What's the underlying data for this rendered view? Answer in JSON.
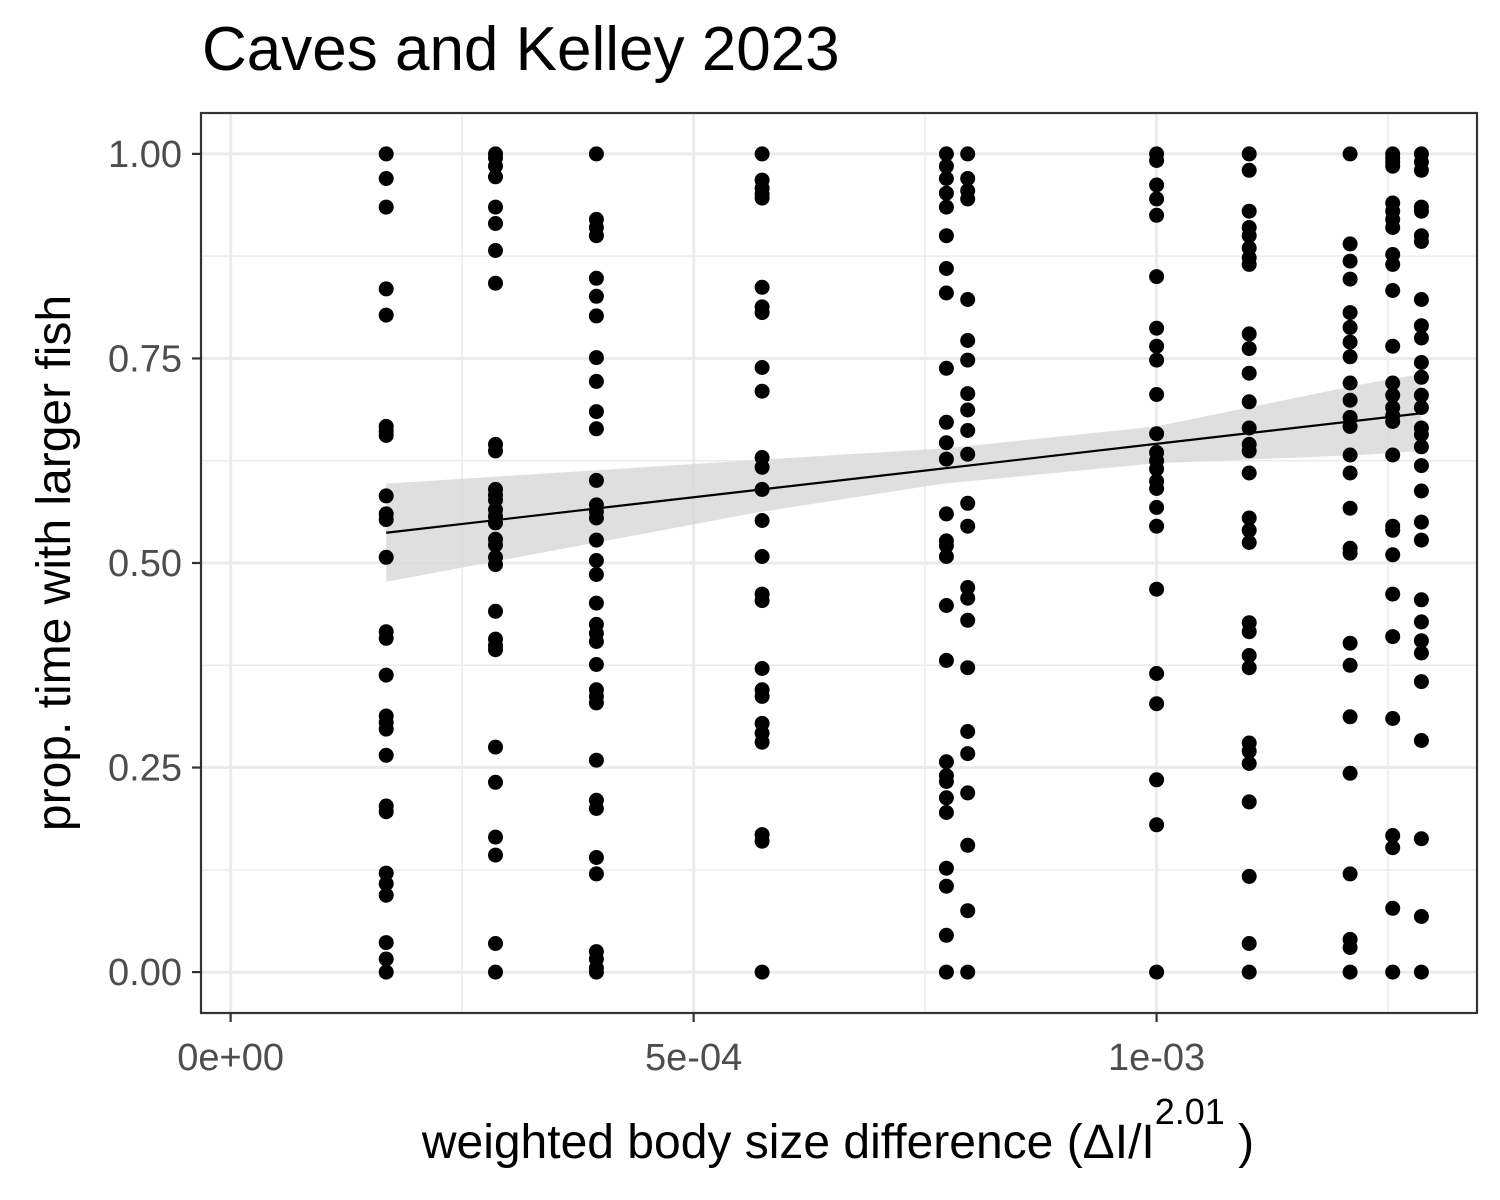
{
  "chart_data": {
    "type": "scatter",
    "title": "Caves and Kelley 2023",
    "xlabel_main": "weighted  body size  difference (ΔI/I",
    "xlabel_sup": "2.01",
    "xlabel_end": " )",
    "ylabel": "prop. time with larger fish",
    "xlim": [
      -3.2e-05,
      0.001346
    ],
    "ylim": [
      -0.05,
      1.05
    ],
    "x_ticks": [
      0,
      0.0005,
      0.001
    ],
    "x_tick_labels": [
      "0e+00",
      "5e-04",
      "1e-03"
    ],
    "y_ticks": [
      0,
      0.25,
      0.5,
      0.75,
      1
    ],
    "y_tick_labels": [
      "0.00",
      "0.25",
      "0.50",
      "0.75",
      "1.00"
    ],
    "grid": true,
    "colors": {
      "points": "#000000",
      "fit_line": "#000000",
      "confidence_band": "#d9d9d9",
      "grid": "#ebebeb",
      "panel_border": "#333333",
      "tick_text": "#4d4d4d"
    },
    "fit_line": {
      "x": [
        0.000168,
        0.001286
      ],
      "y": [
        0.537,
        0.683
      ]
    },
    "confidence_band": {
      "x": [
        0.000168,
        0.00057,
        0.00077,
        0.001,
        0.00122,
        0.001286
      ],
      "lower": [
        0.477,
        0.562,
        0.597,
        0.622,
        0.632,
        0.637
      ],
      "upper": [
        0.597,
        0.626,
        0.64,
        0.667,
        0.718,
        0.731
      ]
    },
    "series": [
      {
        "x": 0.000168,
        "y": [
          1.0,
          0.97,
          0.935,
          0.835,
          0.803,
          0.667,
          0.661,
          0.656,
          0.582,
          0.56,
          0.553,
          0.507,
          0.416,
          0.408,
          0.363,
          0.313,
          0.305,
          0.297,
          0.265,
          0.203,
          0.196,
          0.121,
          0.108,
          0.094,
          0.036,
          0.016,
          0.0
        ]
      },
      {
        "x": 0.000286,
        "y": [
          1.0,
          0.995,
          0.985,
          0.972,
          0.935,
          0.915,
          0.882,
          0.842,
          0.645,
          0.637,
          0.59,
          0.583,
          0.577,
          0.565,
          0.557,
          0.549,
          0.529,
          0.522,
          0.507,
          0.498,
          0.441,
          0.407,
          0.399,
          0.394,
          0.275,
          0.232,
          0.165,
          0.143,
          0.035,
          0.0
        ]
      },
      {
        "x": 0.000395,
        "y": [
          1.0,
          0.92,
          0.91,
          0.9,
          0.848,
          0.826,
          0.802,
          0.751,
          0.722,
          0.685,
          0.664,
          0.601,
          0.571,
          0.563,
          0.555,
          0.528,
          0.503,
          0.486,
          0.451,
          0.425,
          0.414,
          0.404,
          0.376,
          0.345,
          0.337,
          0.329,
          0.259,
          0.21,
          0.2,
          0.14,
          0.12,
          0.025,
          0.016,
          0.005,
          0.0
        ]
      },
      {
        "x": 0.000574,
        "y": [
          1.0,
          0.968,
          0.958,
          0.951,
          0.946,
          0.837,
          0.813,
          0.806,
          0.739,
          0.71,
          0.629,
          0.617,
          0.59,
          0.552,
          0.508,
          0.462,
          0.454,
          0.371,
          0.345,
          0.337,
          0.304,
          0.292,
          0.281,
          0.168,
          0.16,
          0.0
        ]
      },
      {
        "x": 0.000773,
        "y": [
          1.0,
          0.985,
          0.97,
          0.952,
          0.935,
          0.9,
          0.86,
          0.83,
          0.738,
          0.672,
          0.647,
          0.627,
          0.56,
          0.527,
          0.521,
          0.508,
          0.448,
          0.381,
          0.257,
          0.24,
          0.233,
          0.213,
          0.195,
          0.127,
          0.105,
          0.045,
          0.0
        ]
      },
      {
        "x": 0.000796,
        "y": [
          1.0,
          0.97,
          0.955,
          0.945,
          0.822,
          0.772,
          0.748,
          0.707,
          0.687,
          0.662,
          0.633,
          0.573,
          0.545,
          0.47,
          0.457,
          0.43,
          0.372,
          0.294,
          0.267,
          0.219,
          0.155,
          0.075,
          0.0
        ]
      },
      {
        "x": 0.001,
        "y": [
          1.0,
          0.992,
          0.962,
          0.945,
          0.925,
          0.85,
          0.787,
          0.765,
          0.748,
          0.706,
          0.658,
          0.635,
          0.625,
          0.615,
          0.6,
          0.591,
          0.568,
          0.545,
          0.468,
          0.365,
          0.328,
          0.235,
          0.18,
          0.0
        ]
      },
      {
        "x": 0.0011,
        "y": [
          1.0,
          0.98,
          0.93,
          0.91,
          0.9,
          0.885,
          0.873,
          0.865,
          0.78,
          0.762,
          0.732,
          0.697,
          0.665,
          0.645,
          0.637,
          0.61,
          0.555,
          0.54,
          0.525,
          0.427,
          0.416,
          0.387,
          0.372,
          0.28,
          0.27,
          0.255,
          0.208,
          0.117,
          0.035,
          0.0
        ]
      },
      {
        "x": 0.001209,
        "y": [
          1.0,
          0.89,
          0.869,
          0.847,
          0.806,
          0.788,
          0.77,
          0.752,
          0.72,
          0.699,
          0.678,
          0.667,
          0.632,
          0.61,
          0.567,
          0.518,
          0.512,
          0.402,
          0.375,
          0.312,
          0.243,
          0.12,
          0.04,
          0.03,
          0.0
        ]
      },
      {
        "x": 0.001255,
        "y": [
          1.0,
          0.995,
          0.99,
          0.985,
          0.94,
          0.93,
          0.92,
          0.91,
          0.877,
          0.865,
          0.833,
          0.765,
          0.72,
          0.705,
          0.69,
          0.68,
          0.673,
          0.632,
          0.545,
          0.54,
          0.51,
          0.462,
          0.41,
          0.31,
          0.167,
          0.152,
          0.078,
          0.0
        ]
      },
      {
        "x": 0.001286,
        "y": [
          1.0,
          0.99,
          0.98,
          0.935,
          0.93,
          0.9,
          0.893,
          0.822,
          0.79,
          0.775,
          0.745,
          0.727,
          0.705,
          0.69,
          0.665,
          0.657,
          0.642,
          0.619,
          0.588,
          0.55,
          0.528,
          0.455,
          0.428,
          0.405,
          0.39,
          0.355,
          0.283,
          0.163,
          0.068,
          0.0
        ]
      }
    ]
  }
}
